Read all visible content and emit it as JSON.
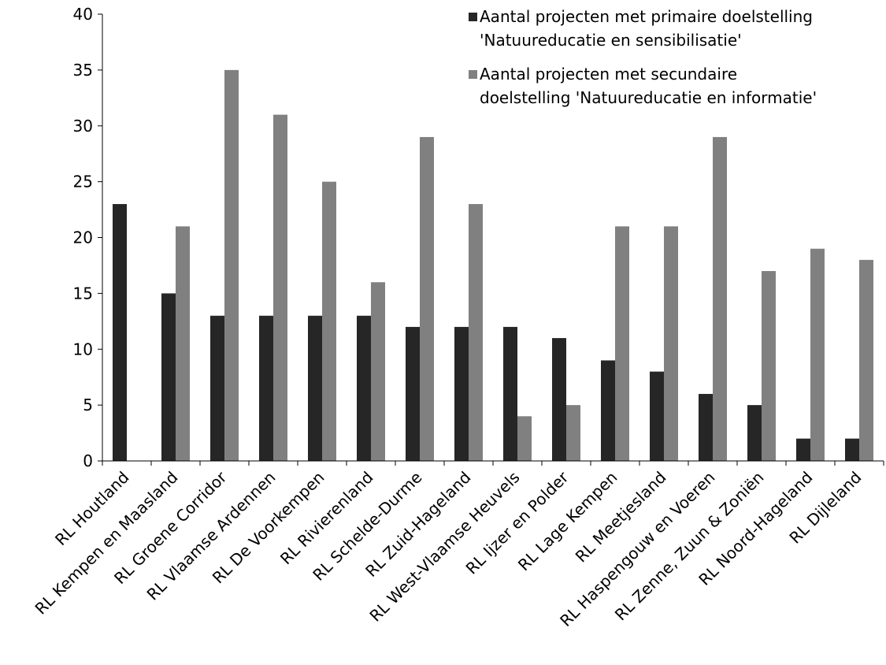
{
  "chart_data": {
    "type": "bar",
    "title": "",
    "xlabel": "",
    "ylabel": "",
    "ylim": [
      0,
      40
    ],
    "yticks": [
      0,
      5,
      10,
      15,
      20,
      25,
      30,
      35,
      40
    ],
    "grid": false,
    "legend_position": "top-right",
    "categories": [
      "RL Houtland",
      "RL Kempen en Maasland",
      "RL Groene Corridor",
      "RL Vlaamse Ardennen",
      "RL De Voorkempen",
      "RL Rivierenland",
      "RL Schelde-Durme",
      "RL Zuid-Hageland",
      "RL West-Vlaamse Heuvels",
      "RL Ijzer en Polder",
      "RL Lage Kempen",
      "RL Meetjesland",
      "RL Haspengouw en Voeren",
      "RL Zenne, Zuun & Zoniën",
      "RL Noord-Hageland",
      "RL Dijleland"
    ],
    "series": [
      {
        "name": "Aantal projecten met primaire doelstelling 'Natuureducatie en sensibilisatie'",
        "legend_lines": [
          "Aantal projecten met primaire doelstelling",
          "'Natuureducatie en sensibilisatie'"
        ],
        "color": "#262626",
        "values": [
          23,
          15,
          13,
          13,
          13,
          13,
          12,
          12,
          12,
          11,
          9,
          8,
          6,
          5,
          2,
          2
        ]
      },
      {
        "name": "Aantal projecten met secundaire doelstelling 'Natuureducatie en informatie'",
        "legend_lines": [
          "Aantal projecten met secundaire",
          "doelstelling 'Natuureducatie en informatie'"
        ],
        "color": "#808080",
        "values": [
          0,
          21,
          35,
          31,
          25,
          16,
          29,
          23,
          4,
          5,
          21,
          21,
          29,
          17,
          19,
          18
        ]
      }
    ]
  }
}
